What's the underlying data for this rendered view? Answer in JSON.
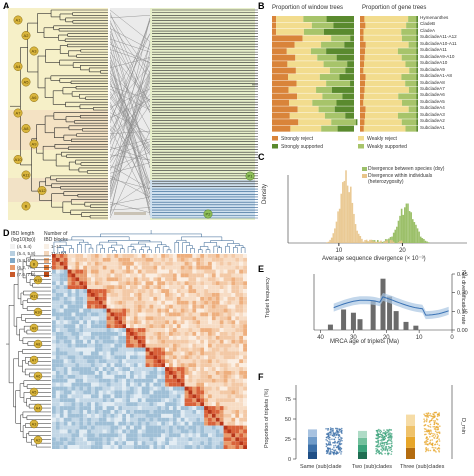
{
  "panels": {
    "a": "A",
    "b": "B",
    "c": "C",
    "d": "D",
    "e": "E",
    "f": "F"
  },
  "panel_a": {
    "left_nodes": [
      "A1",
      "A2",
      "A3",
      "A4",
      "A5",
      "A6",
      "A7",
      "A8",
      "A9",
      "A10",
      "A11",
      "A12",
      "B"
    ],
    "right_nodes": [
      "P1",
      "P2"
    ]
  },
  "panel_b": {
    "title_left": "Proportion of window trees",
    "title_right": "Proportion of gene trees",
    "rows": [
      "Hymenanthes",
      "CladeB",
      "CladeA",
      "SubcladeA11-A12",
      "SubcladeA10-A11",
      "SubcladeA11",
      "SubcladeA9-A10",
      "SubcladeA10",
      "SubcladeA9",
      "SubcladeA1-A8",
      "SubcladeA8",
      "SubcladeA7",
      "SubcladeA6",
      "SubcladeA5",
      "SubcladeA4",
      "SubcladeA3",
      "SubcladeA2",
      "SubcladeA1"
    ],
    "legend": [
      "Strongly reject",
      "Strongly supported",
      "Weakly reject",
      "Weakly supported"
    ],
    "colors": {
      "strong_reject": "#d9843a",
      "strong_support": "#5a8a2e",
      "weak_reject": "#f2dc8e",
      "weak_support": "#a7c46a"
    }
  },
  "panel_c": {
    "ylabel": "Density",
    "xlabel": "Average sequence divergence (× 10⁻³)",
    "xticks": [
      "10",
      "20"
    ],
    "legend": [
      "Divergence between species (dxy)",
      "Divergence within individuals (heterozygosity)"
    ],
    "colors": {
      "between": "#9cc06a",
      "within": "#e8c48a"
    }
  },
  "panel_d": {
    "legend_title_1": "IBD length",
    "legend_title_1b": "(log10(bp))",
    "legend_title_2": "Number of",
    "legend_title_2b": "IBD blocks",
    "legend_lengths": [
      "(4, 5.4)",
      "(5.4, 5.8)",
      "(5.8, 6.2)",
      "(6.2, 7.6)",
      "(7.6, 7.9)"
    ],
    "legend_counts": [
      "1–10",
      "11–100",
      "101–500",
      "501–2000",
      ">2000"
    ]
  },
  "panel_e": {
    "ylabel_left": "Triplet frequency",
    "ylabel_right": "Net diversification rate",
    "xlabel": "MRCA age of triplets (Ma)",
    "xticks": [
      "40",
      "30",
      "20",
      "10",
      "0"
    ],
    "ylabel_right_ticks": [
      "0.45",
      "0.30",
      "0.15",
      "0.00"
    ]
  },
  "panel_f": {
    "ylabel_left": "Proportion of triplets (%)",
    "ylabel_right": "D_min",
    "yticks_left": [
      "75",
      "50",
      "25",
      "0"
    ],
    "categories": [
      "Same (sub)clade",
      "Two (sub)clades",
      "Three (sub)clades"
    ],
    "colors": {
      "same": "#3b6fa8",
      "two": "#3aa27a",
      "three": "#e7a62a"
    }
  }
}
